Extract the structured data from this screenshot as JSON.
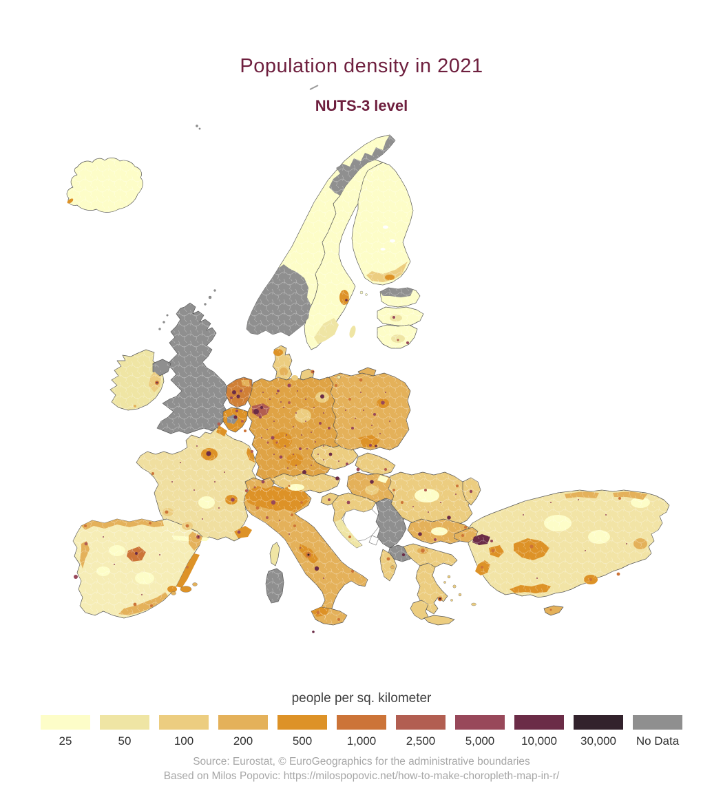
{
  "header": {
    "title": "Population density in 2021",
    "subtitle": "NUTS-3 level"
  },
  "legend": {
    "title": "people per sq. kilometer",
    "classes": [
      {
        "label": "25",
        "color": "#fdfdc8"
      },
      {
        "label": "50",
        "color": "#efe5a4"
      },
      {
        "label": "100",
        "color": "#eccd80"
      },
      {
        "label": "200",
        "color": "#e4b15a"
      },
      {
        "label": "500",
        "color": "#dd9227"
      },
      {
        "label": "1,000",
        "color": "#cc7438"
      },
      {
        "label": "2,500",
        "color": "#b25e51"
      },
      {
        "label": "5,000",
        "color": "#98485a"
      },
      {
        "label": "10,000",
        "color": "#6b2c47"
      },
      {
        "label": "30,000",
        "color": "#32222c"
      },
      {
        "label": "No Data",
        "color": "#8f8f8f"
      }
    ]
  },
  "caption": {
    "line1": "Source: Eurostat, © EuroGeographics for the administrative boundaries",
    "line2": "Based on Milos Popovic: https://milospopovic.net/how-to-make-choropleth-map-in-r/"
  },
  "chart_data": {
    "type": "heatmap",
    "subtype": "choropleth-map",
    "title": "Population density in 2021",
    "subtitle": "NUTS-3 level",
    "unit": "people per sq. kilometer",
    "class_breaks": [
      25,
      50,
      100,
      200,
      500,
      1000,
      2500,
      5000,
      10000,
      30000
    ],
    "no_data_label": "No Data",
    "legend_position": "bottom",
    "visible_no_data_regions": [
      "United Kingdom",
      "southern Norway",
      "northern Norway coast",
      "northern Estonia",
      "parts of Belgium",
      "Serbia",
      "North Macedonia and Kosovo",
      "Sardinia"
    ],
    "visible_high_density_spots": [
      "Istanbul",
      "Paris",
      "Randstad (Netherlands)",
      "Ruhr area",
      "Berlin",
      "Munich",
      "Vienna",
      "Budapest",
      "Naples",
      "Milan",
      "Lisbon",
      "Bucharest",
      "Sofia",
      "Athens",
      "Warsaw",
      "Prague"
    ],
    "low_density_areas": [
      "Iceland",
      "Nordics",
      "interior Spain",
      "central Turkey",
      "Alps",
      "Greece"
    ]
  }
}
